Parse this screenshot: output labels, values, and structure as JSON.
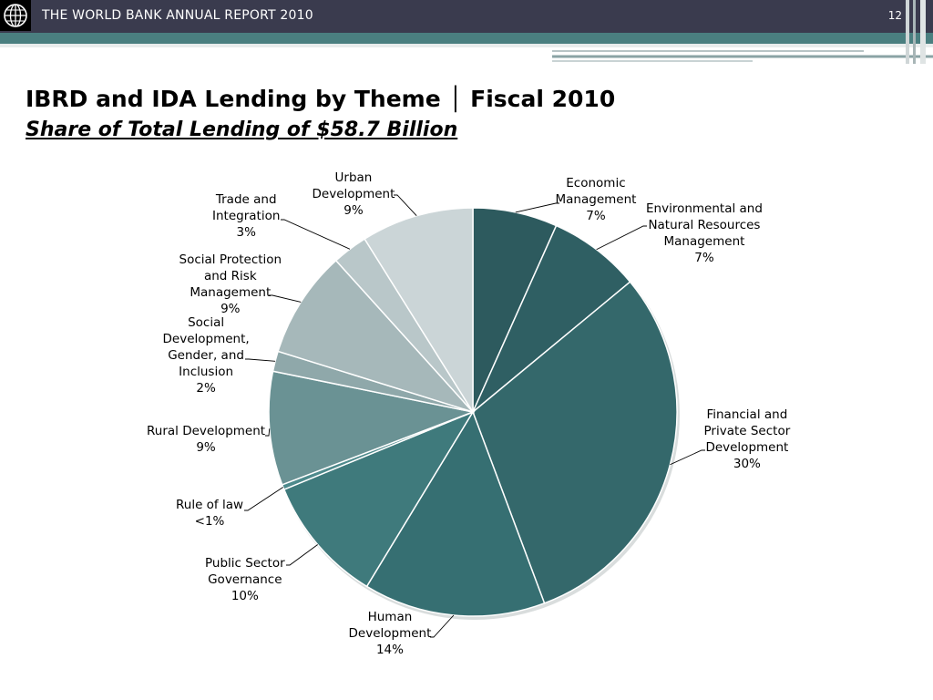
{
  "header": {
    "report_title": "THE WORLD BANK ANNUAL REPORT 2010",
    "page_number": "12",
    "logo_icon": "world-bank-globe-icon"
  },
  "slide": {
    "title": "IBRD and IDA Lending by Theme │ Fiscal 2010",
    "subtitle": "Share of Total Lending of $58.7 Billion"
  },
  "chart_data": {
    "type": "pie",
    "title": "IBRD and IDA Lending by Theme │ Fiscal 2010",
    "subtitle": "Share of Total Lending of $58.7 Billion",
    "start_angle": "12 o'clock, clockwise",
    "slices": [
      {
        "name": "Economic Management",
        "label_lines": [
          "Economic",
          "Management"
        ],
        "pct_label": "7%",
        "value": 6.7,
        "color": "#2d5a5e"
      },
      {
        "name": "Environmental and Natural Resources Management",
        "label_lines": [
          "Environmental and",
          "Natural Resources",
          "Management"
        ],
        "pct_label": "7%",
        "value": 7.3,
        "color": "#2f5f63"
      },
      {
        "name": "Financial and Private Sector Development",
        "label_lines": [
          "Financial and",
          "Private Sector",
          "Development"
        ],
        "pct_label": "30%",
        "value": 30.3,
        "color": "#34686b"
      },
      {
        "name": "Human Development",
        "label_lines": [
          "Human",
          "Development"
        ],
        "pct_label": "14%",
        "value": 14.4,
        "color": "#366f72"
      },
      {
        "name": "Public Sector Governance",
        "label_lines": [
          "Public Sector",
          "Governance"
        ],
        "pct_label": "10%",
        "value": 10.1,
        "color": "#3f7a7c"
      },
      {
        "name": "Rule of law",
        "label_lines": [
          "Rule of law"
        ],
        "pct_label": "<1%",
        "value": 0.4,
        "color": "#4e8a8c"
      },
      {
        "name": "Rural Development",
        "label_lines": [
          "Rural Development"
        ],
        "pct_label": "9%",
        "value": 9.0,
        "color": "#6a9294"
      },
      {
        "name": "Social Development, Gender, and Inclusion",
        "label_lines": [
          "Social",
          "Development,",
          "Gender, and",
          "Inclusion"
        ],
        "pct_label": "2%",
        "value": 1.6,
        "color": "#8fa8aa"
      },
      {
        "name": "Social Protection and Risk Management",
        "label_lines": [
          "Social Protection",
          "and Risk",
          "Management"
        ],
        "pct_label": "9%",
        "value": 8.5,
        "color": "#a6b8ba"
      },
      {
        "name": "Trade and Integration",
        "label_lines": [
          "Trade and",
          "Integration"
        ],
        "pct_label": "3%",
        "value": 2.8,
        "color": "#b9c7c9"
      },
      {
        "name": "Urban Development",
        "label_lines": [
          "Urban",
          "Development"
        ],
        "pct_label": "9%",
        "value": 8.9,
        "color": "#cbd5d7"
      }
    ]
  }
}
